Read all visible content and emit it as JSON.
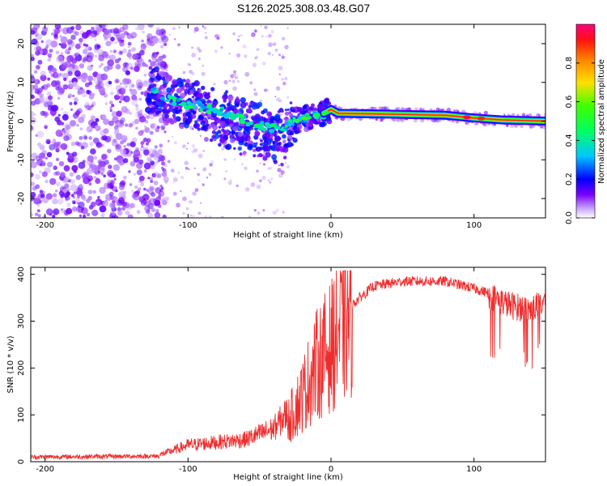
{
  "title": "S126.2025.308.03.48.G07",
  "chart_data": [
    {
      "type": "heatmap",
      "name": "spectrogram",
      "xlabel": "Height of straight line (km)",
      "ylabel": "Frequency (Hz)",
      "xlim": [
        -210,
        150
      ],
      "ylim": [
        -25,
        25
      ],
      "xticks": [
        -200,
        -100,
        0,
        100
      ],
      "yticks": [
        -20,
        -10,
        0,
        10,
        20
      ],
      "ridge": [
        {
          "x": -125,
          "y": 8
        },
        {
          "x": -110,
          "y": 5
        },
        {
          "x": -95,
          "y": 4
        },
        {
          "x": -80,
          "y": 3
        },
        {
          "x": -65,
          "y": 1
        },
        {
          "x": -50,
          "y": -1
        },
        {
          "x": -35,
          "y": -2
        },
        {
          "x": -25,
          "y": 0
        },
        {
          "x": -15,
          "y": 1
        },
        {
          "x": -5,
          "y": 2
        },
        {
          "x": 0,
          "y": 3
        },
        {
          "x": 5,
          "y": 2
        },
        {
          "x": 40,
          "y": 1.8
        },
        {
          "x": 80,
          "y": 1.5
        },
        {
          "x": 100,
          "y": 0.8
        },
        {
          "x": 120,
          "y": 0.3
        },
        {
          "x": 150,
          "y": 0
        }
      ],
      "colorbar": {
        "label": "Normalized spectral amplitude",
        "ticks": [
          "0.0",
          "0.2",
          "0.4",
          "0.6",
          "0.8"
        ],
        "range": [
          0,
          1
        ]
      }
    },
    {
      "type": "line",
      "name": "snr",
      "xlabel": "Height of straight line (km)",
      "ylabel": "SNR (10 * v/v)",
      "xlim": [
        -210,
        150
      ],
      "ylim": [
        0,
        415
      ],
      "xticks": [
        -200,
        -100,
        0,
        100
      ],
      "yticks": [
        0,
        100,
        200,
        300,
        400
      ],
      "color": "#ee2e2e",
      "envelope": [
        {
          "x": -210,
          "y": 10
        },
        {
          "x": -120,
          "y": 12
        },
        {
          "x": -100,
          "y": 30
        },
        {
          "x": -80,
          "y": 35
        },
        {
          "x": -60,
          "y": 40
        },
        {
          "x": -40,
          "y": 60
        },
        {
          "x": -30,
          "y": 90
        },
        {
          "x": -20,
          "y": 150
        },
        {
          "x": -10,
          "y": 220
        },
        {
          "x": 0,
          "y": 260
        },
        {
          "x": 10,
          "y": 320
        },
        {
          "x": 20,
          "y": 350
        },
        {
          "x": 30,
          "y": 375
        },
        {
          "x": 50,
          "y": 385
        },
        {
          "x": 80,
          "y": 385
        },
        {
          "x": 100,
          "y": 370
        },
        {
          "x": 115,
          "y": 355
        },
        {
          "x": 125,
          "y": 340
        },
        {
          "x": 140,
          "y": 330
        },
        {
          "x": 150,
          "y": 350
        }
      ]
    }
  ]
}
